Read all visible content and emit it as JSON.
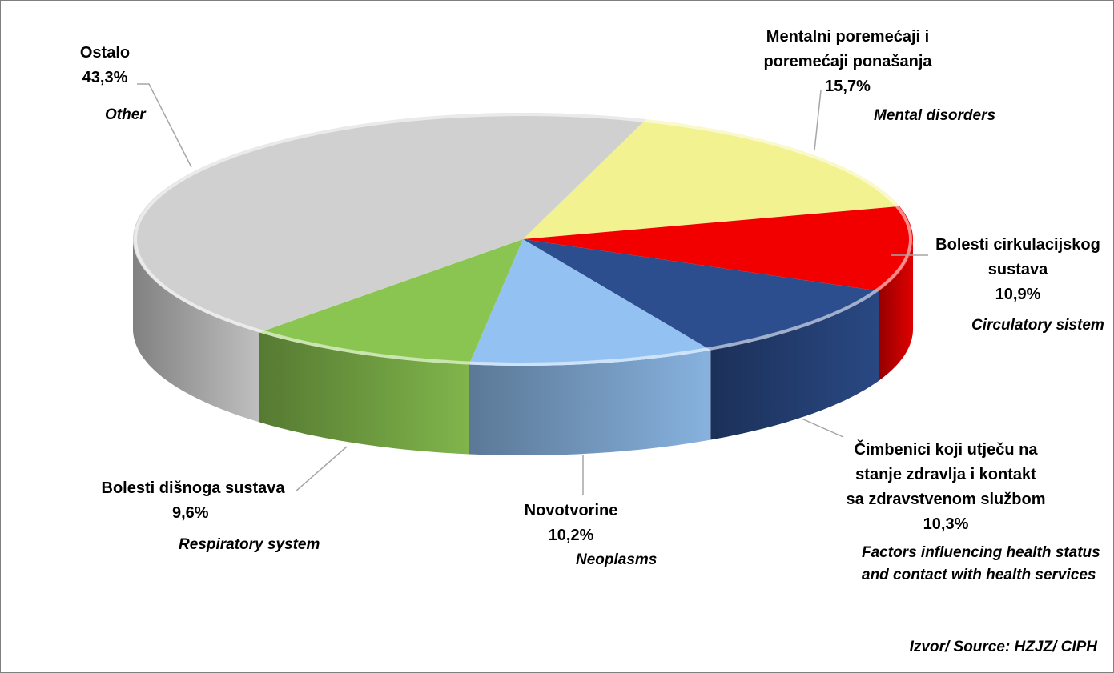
{
  "chart_data": {
    "type": "pie",
    "style": "3d",
    "slices": [
      {
        "label": [
          "Mentalni poremećaji i",
          "poremećaji ponašanja"
        ],
        "pct_label": "15,7%",
        "value": 15.7,
        "english": [
          "Mental disorders"
        ],
        "color": "#f2f291"
      },
      {
        "label": [
          "Bolesti cirkulacijskog",
          "sustava"
        ],
        "pct_label": "10,9%",
        "value": 10.9,
        "english": [
          "Circulatory sistem"
        ],
        "color": "#f20000"
      },
      {
        "label": [
          "Čimbenici koji utječu na",
          "stanje zdravlja i kontakt",
          "sa zdravstvenom službom"
        ],
        "pct_label": "10,3%",
        "value": 10.3,
        "english": [
          "Factors influencing health status",
          "and contact with health services"
        ],
        "color": "#2d4e8e"
      },
      {
        "label": [
          "Novotvorine"
        ],
        "pct_label": "10,2%",
        "value": 10.2,
        "english": [
          "Neoplasms"
        ],
        "color": "#93c2f2"
      },
      {
        "label": [
          "Bolesti dišnoga sustava"
        ],
        "pct_label": "9,6%",
        "value": 9.6,
        "english": [
          "Respiratory system"
        ],
        "color": "#8bc551"
      },
      {
        "label": [
          "Ostalo"
        ],
        "pct_label": "43,3%",
        "value": 43.3,
        "english": [
          "Other"
        ],
        "color": "#d0d0d0"
      }
    ],
    "source": "Izvor/ Source: HZJZ/ CIPH"
  }
}
